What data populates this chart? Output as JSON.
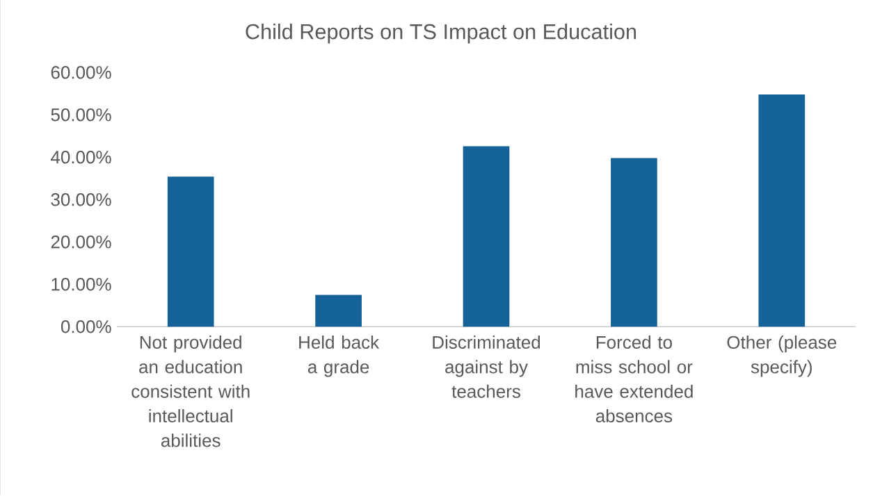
{
  "chart_data": {
    "type": "bar",
    "title": "Child Reports on TS Impact on Education",
    "categories": [
      "Not provided an education consistent with intellectual abilities",
      "Held back a grade",
      "Discriminated against by teachers",
      "Forced to miss school or have extended absences",
      "Other (please specify)"
    ],
    "values": [
      35.4,
      7.5,
      42.6,
      39.8,
      54.8
    ],
    "color": "#156299",
    "ylim": [
      0,
      60
    ],
    "yticks": [
      {
        "value": 0,
        "label": "0.00%"
      },
      {
        "value": 10,
        "label": "10.00%"
      },
      {
        "value": 20,
        "label": "20.00%"
      },
      {
        "value": 30,
        "label": "30.00%"
      },
      {
        "value": 40,
        "label": "40.00%"
      },
      {
        "value": 50,
        "label": "50.00%"
      },
      {
        "value": 60,
        "label": "60.00%"
      }
    ]
  }
}
